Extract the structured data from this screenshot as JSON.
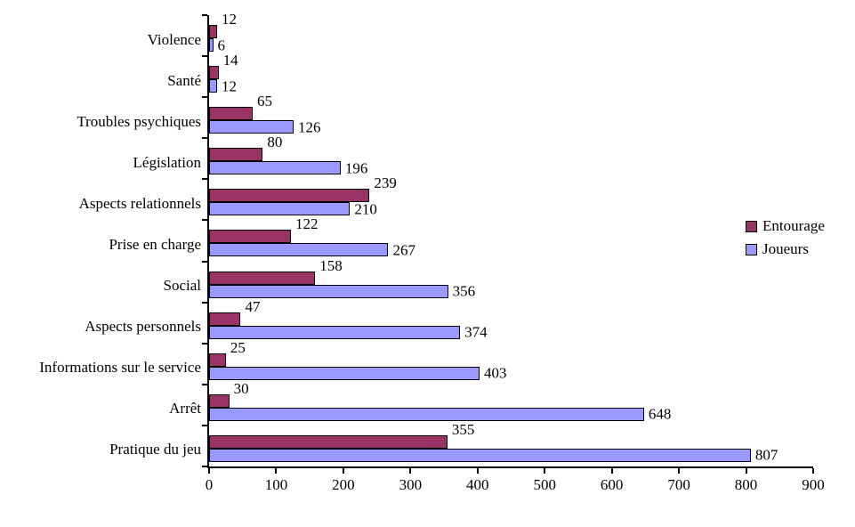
{
  "chart_data": {
    "type": "bar",
    "orientation": "horizontal",
    "title": "",
    "xlabel": "",
    "ylabel": "",
    "grid": false,
    "legend_position": "right",
    "xlim": [
      0,
      900
    ],
    "xticks": [
      0,
      100,
      200,
      300,
      400,
      500,
      600,
      700,
      800,
      900
    ],
    "categories": [
      "Violence",
      "Santé",
      "Troubles psychiques",
      "Législation",
      "Aspects relationnels",
      "Prise en charge",
      "Social",
      "Aspects personnels",
      "Informations sur le service",
      "Arrêt",
      "Pratique du jeu"
    ],
    "series": [
      {
        "name": "Entourage",
        "color": "#993366",
        "values": [
          12,
          14,
          65,
          80,
          239,
          122,
          158,
          47,
          25,
          30,
          355
        ]
      },
      {
        "name": "Joueurs",
        "color": "#9999FF",
        "values": [
          6,
          12,
          126,
          196,
          210,
          267,
          356,
          374,
          403,
          648,
          807
        ]
      }
    ]
  },
  "colors": {
    "axis": "#000000",
    "bar_border": "#000000",
    "background": "#FFFFFF"
  }
}
